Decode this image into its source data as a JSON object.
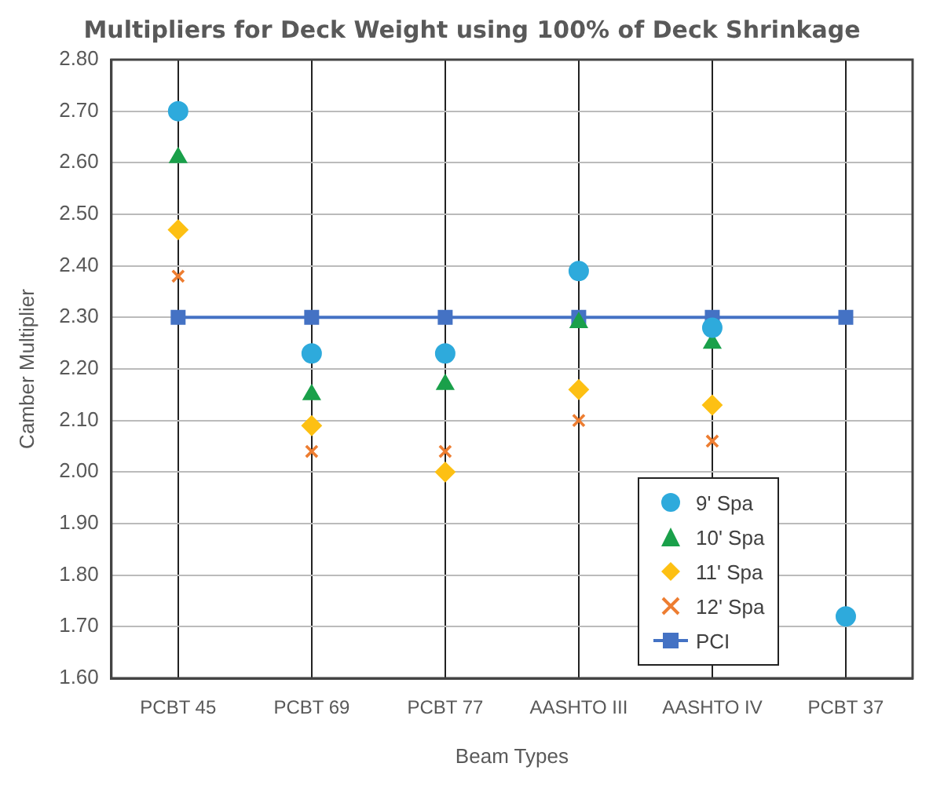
{
  "chart_data": {
    "type": "scatter",
    "title": "Multipliers for Deck Weight using 100% of Deck Shrinkage",
    "xlabel": "Beam Types",
    "ylabel": "Camber Multiplier",
    "categories": [
      "PCBT 45",
      "PCBT 69",
      "PCBT 77",
      "AASHTO III",
      "AASHTO IV",
      "PCBT 37"
    ],
    "series": [
      {
        "name": "9' Spa",
        "color": "#2eaadc",
        "marker": "circle",
        "values": [
          2.7,
          2.23,
          2.23,
          2.39,
          2.28,
          1.72
        ]
      },
      {
        "name": "10' Spa",
        "color": "#1aa04a",
        "marker": "triangle",
        "values": [
          2.61,
          2.15,
          2.17,
          2.29,
          2.25,
          null
        ]
      },
      {
        "name": "11' Spa",
        "color": "#fdc013",
        "marker": "diamond",
        "values": [
          2.47,
          2.09,
          2.0,
          2.16,
          2.13,
          null
        ]
      },
      {
        "name": "12' Spa",
        "color": "#ed7d31",
        "marker": "cross",
        "values": [
          2.38,
          2.04,
          2.04,
          2.1,
          2.06,
          null
        ]
      },
      {
        "name": "PCI",
        "type": "line",
        "color": "#4472c4",
        "marker": "square",
        "values": [
          2.3,
          2.3,
          2.3,
          2.3,
          2.3,
          2.3
        ]
      }
    ],
    "ylim": [
      1.6,
      2.8
    ],
    "yticks": [
      {
        "value": 1.6,
        "label": "1.60"
      },
      {
        "value": 1.7,
        "label": "1.70"
      },
      {
        "value": 1.8,
        "label": "1.80"
      },
      {
        "value": 1.9,
        "label": "1.90"
      },
      {
        "value": 2.0,
        "label": "2.00"
      },
      {
        "value": 2.1,
        "label": "2.10"
      },
      {
        "value": 2.2,
        "label": "2.20"
      },
      {
        "value": 2.3,
        "label": "2.30"
      },
      {
        "value": 2.4,
        "label": "2.40"
      },
      {
        "value": 2.5,
        "label": "2.50"
      },
      {
        "value": 2.6,
        "label": "2.60"
      },
      {
        "value": 2.7,
        "label": "2.70"
      },
      {
        "value": 2.8,
        "label": "2.80"
      }
    ],
    "grid": true,
    "legend": "bottom right"
  }
}
